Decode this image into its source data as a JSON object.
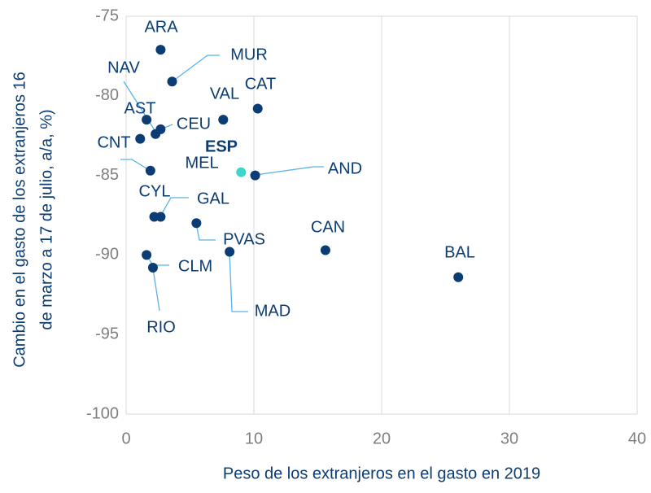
{
  "chart_data": {
    "type": "scatter",
    "x_label": "Peso de los extranjeros en el gasto en 2019",
    "y_label": [
      "Cambio en el gasto de los extranjeros 16",
      "de marzo a 17 de julio, a/a, %)"
    ],
    "xlim": [
      0,
      40
    ],
    "xticks": [
      0,
      10,
      20,
      30,
      40
    ],
    "ylim": [
      -100,
      -75
    ],
    "yticks": [
      -100,
      -95,
      -90,
      -85,
      -80,
      -75
    ],
    "grid": "x",
    "color": "#0b3c73",
    "highlight_color": "#3dd6c8",
    "leader_color": "#5bb2e8",
    "points": [
      {
        "label": "ARA",
        "x": 2.7,
        "y": -77.1
      },
      {
        "label": "MUR",
        "x": 3.6,
        "y": -79.1
      },
      {
        "label": "CAT",
        "x": 10.3,
        "y": -80.8
      },
      {
        "label": "VAL",
        "x": 7.6,
        "y": -81.5
      },
      {
        "label": "AST",
        "x": 1.6,
        "y": -81.5
      },
      {
        "label": "CEU",
        "x": 2.7,
        "y": -82.1
      },
      {
        "label": "NAV",
        "x": 2.3,
        "y": -82.4
      },
      {
        "label": "CNT",
        "x": 1.1,
        "y": -82.7
      },
      {
        "label": "ESP",
        "x": 9.0,
        "y": -84.8,
        "highlight": true
      },
      {
        "label": "MEL",
        "x": 1.9,
        "y": -84.7
      },
      {
        "label": "AND",
        "x": 10.1,
        "y": -85.0
      },
      {
        "label": "CYL",
        "x": 2.2,
        "y": -87.6
      },
      {
        "label": "GAL",
        "x": 2.7,
        "y": -87.6
      },
      {
        "label": "PVAS",
        "x": 5.5,
        "y": -88.0
      },
      {
        "label": "CAN",
        "x": 15.6,
        "y": -89.7
      },
      {
        "label": "MAD",
        "x": 8.1,
        "y": -89.8
      },
      {
        "label": "BAL",
        "x": 26.0,
        "y": -91.4
      },
      {
        "label": "CLM",
        "x": 1.6,
        "y": -90.0
      },
      {
        "label": "RIO",
        "x": 2.1,
        "y": -90.8
      }
    ]
  }
}
